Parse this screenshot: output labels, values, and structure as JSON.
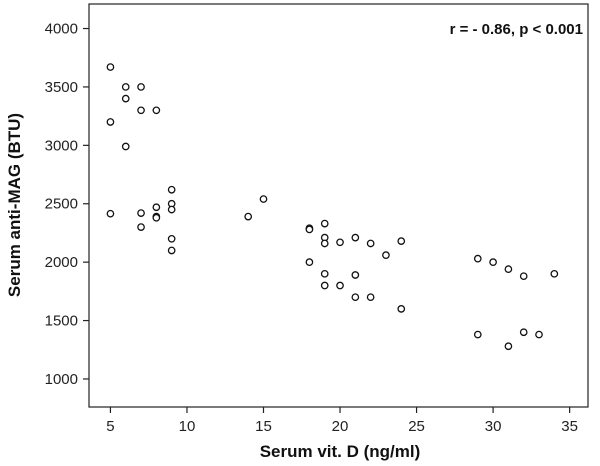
{
  "chart_data": {
    "type": "scatter",
    "title": "",
    "xlabel": "Serum vit. D (ng/ml)",
    "ylabel": "Serum anti-MAG (BTU)",
    "annotation": "r = - 0.86, p < 0.001",
    "annotation_placement": "top-right",
    "xlim": [
      3.6,
      36.2
    ],
    "ylim": [
      760,
      4210
    ],
    "xticks": [
      5,
      10,
      15,
      20,
      25,
      30,
      35
    ],
    "yticks": [
      1000,
      1500,
      2000,
      2500,
      3000,
      3500,
      4000
    ],
    "grid": false,
    "marker": "open-circle",
    "points": [
      {
        "x": 5,
        "y": 3670
      },
      {
        "x": 6,
        "y": 3500
      },
      {
        "x": 7,
        "y": 3500
      },
      {
        "x": 6,
        "y": 3400
      },
      {
        "x": 7,
        "y": 3300
      },
      {
        "x": 8,
        "y": 3300
      },
      {
        "x": 5,
        "y": 3200
      },
      {
        "x": 6,
        "y": 2990
      },
      {
        "x": 9,
        "y": 2620
      },
      {
        "x": 9,
        "y": 2500
      },
      {
        "x": 9,
        "y": 2450
      },
      {
        "x": 8,
        "y": 2470
      },
      {
        "x": 7,
        "y": 2420
      },
      {
        "x": 5,
        "y": 2415
      },
      {
        "x": 8,
        "y": 2390
      },
      {
        "x": 8,
        "y": 2380
      },
      {
        "x": 7,
        "y": 2300
      },
      {
        "x": 9,
        "y": 2200
      },
      {
        "x": 9,
        "y": 2100
      },
      {
        "x": 15,
        "y": 2540
      },
      {
        "x": 14,
        "y": 2390
      },
      {
        "x": 19,
        "y": 2330
      },
      {
        "x": 18,
        "y": 2290
      },
      {
        "x": 18,
        "y": 2280
      },
      {
        "x": 19,
        "y": 2210
      },
      {
        "x": 21,
        "y": 2210
      },
      {
        "x": 19,
        "y": 2160
      },
      {
        "x": 20,
        "y": 2170
      },
      {
        "x": 22,
        "y": 2160
      },
      {
        "x": 24,
        "y": 2180
      },
      {
        "x": 23,
        "y": 2060
      },
      {
        "x": 18,
        "y": 2000
      },
      {
        "x": 19,
        "y": 1900
      },
      {
        "x": 21,
        "y": 1890
      },
      {
        "x": 19,
        "y": 1800
      },
      {
        "x": 20,
        "y": 1800
      },
      {
        "x": 21,
        "y": 1700
      },
      {
        "x": 22,
        "y": 1700
      },
      {
        "x": 24,
        "y": 1600
      },
      {
        "x": 29,
        "y": 2030
      },
      {
        "x": 30,
        "y": 2000
      },
      {
        "x": 31,
        "y": 1940
      },
      {
        "x": 32,
        "y": 1880
      },
      {
        "x": 34,
        "y": 1900
      },
      {
        "x": 29,
        "y": 1380
      },
      {
        "x": 32,
        "y": 1400
      },
      {
        "x": 33,
        "y": 1380
      },
      {
        "x": 31,
        "y": 1280
      }
    ]
  }
}
